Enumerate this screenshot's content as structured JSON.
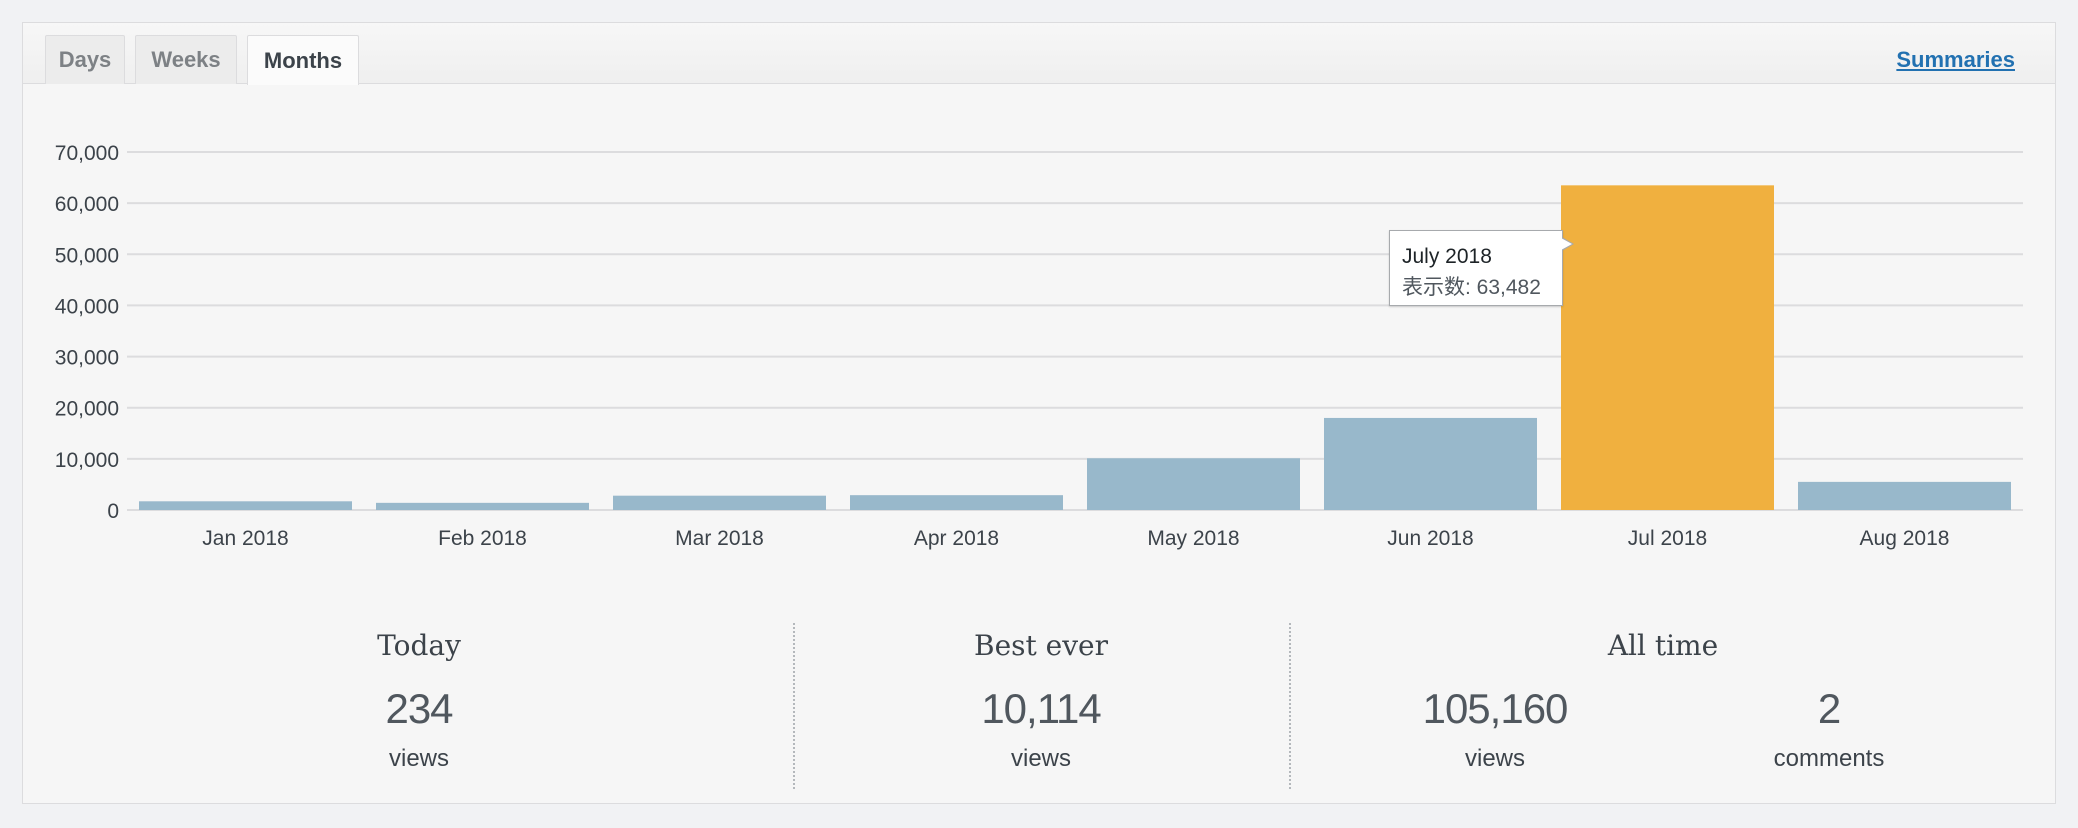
{
  "tabs": [
    {
      "label": "Days",
      "active": false
    },
    {
      "label": "Weeks",
      "active": false
    },
    {
      "label": "Months",
      "active": true
    }
  ],
  "summaries_link": "Summaries",
  "chart_data": {
    "type": "bar",
    "categories": [
      "Jan 2018",
      "Feb 2018",
      "Mar 2018",
      "Apr 2018",
      "May 2018",
      "Jun 2018",
      "Jul 2018",
      "Aug 2018"
    ],
    "values": [
      1700,
      1400,
      2800,
      2900,
      10114,
      18000,
      63482,
      5500
    ],
    "highlight_index": 6,
    "yticks": [
      "70,000",
      "60,000",
      "50,000",
      "40,000",
      "30,000",
      "20,000",
      "10,000",
      "0"
    ],
    "ylim": [
      0,
      70000
    ],
    "grid": true,
    "colors": {
      "bar": "#98b8cb",
      "highlight": "#f0b03f",
      "grid": "#dcdcde"
    }
  },
  "tooltip": {
    "title": "July 2018",
    "views": "表示数: 63,482"
  },
  "stats": {
    "today": {
      "title": "Today",
      "value": "234",
      "label": "views"
    },
    "best_ever": {
      "title": "Best ever",
      "value": "10,114",
      "label": "views"
    },
    "all_time": {
      "title": "All time",
      "views_value": "105,160",
      "views_label": "views",
      "comments_value": "2",
      "comments_label": "comments"
    }
  }
}
